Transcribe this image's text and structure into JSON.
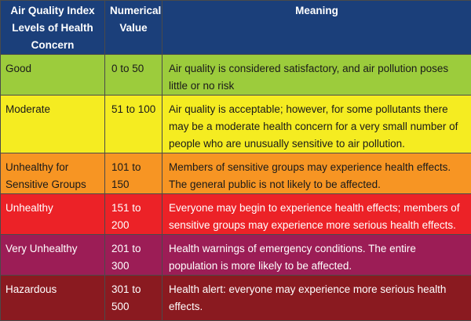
{
  "header": {
    "levels": "Air Quality Index Levels of Health Concern",
    "value": "Numerical Value",
    "meaning": "Meaning"
  },
  "rows": [
    {
      "level": "Good",
      "value": "0 to 50",
      "meaning": "Air quality is considered satisfactory, and air pollution poses little or no risk",
      "color": "#9ccc3c"
    },
    {
      "level": "Moderate",
      "value": "51 to 100",
      "meaning": "Air quality is acceptable; however, for some pollutants there may be a moderate health concern for a very small number of people who are unusually sensitive to air pollution.",
      "color": "#f5ec21"
    },
    {
      "level": "Unhealthy for Sensitive Groups",
      "value": "101 to 150",
      "meaning": "Members of sensitive groups may experience health effects. The general public is not likely to be affected.",
      "color": "#f79523"
    },
    {
      "level": "Unhealthy",
      "value": "151 to 200",
      "meaning": "Everyone may begin to experience health effects; members of sensitive groups may experience more serious health effects.",
      "color": "#ec2227"
    },
    {
      "level": "Very Unhealthy",
      "value": "201 to 300",
      "meaning": "Health warnings of emergency conditions. The entire population is more likely to be affected.",
      "color": "#9c1d56"
    },
    {
      "level": "Hazardous",
      "value": "301 to 500",
      "meaning": "Health alert: everyone may experience more serious health effects.",
      "color": "#8a1a20"
    }
  ]
}
